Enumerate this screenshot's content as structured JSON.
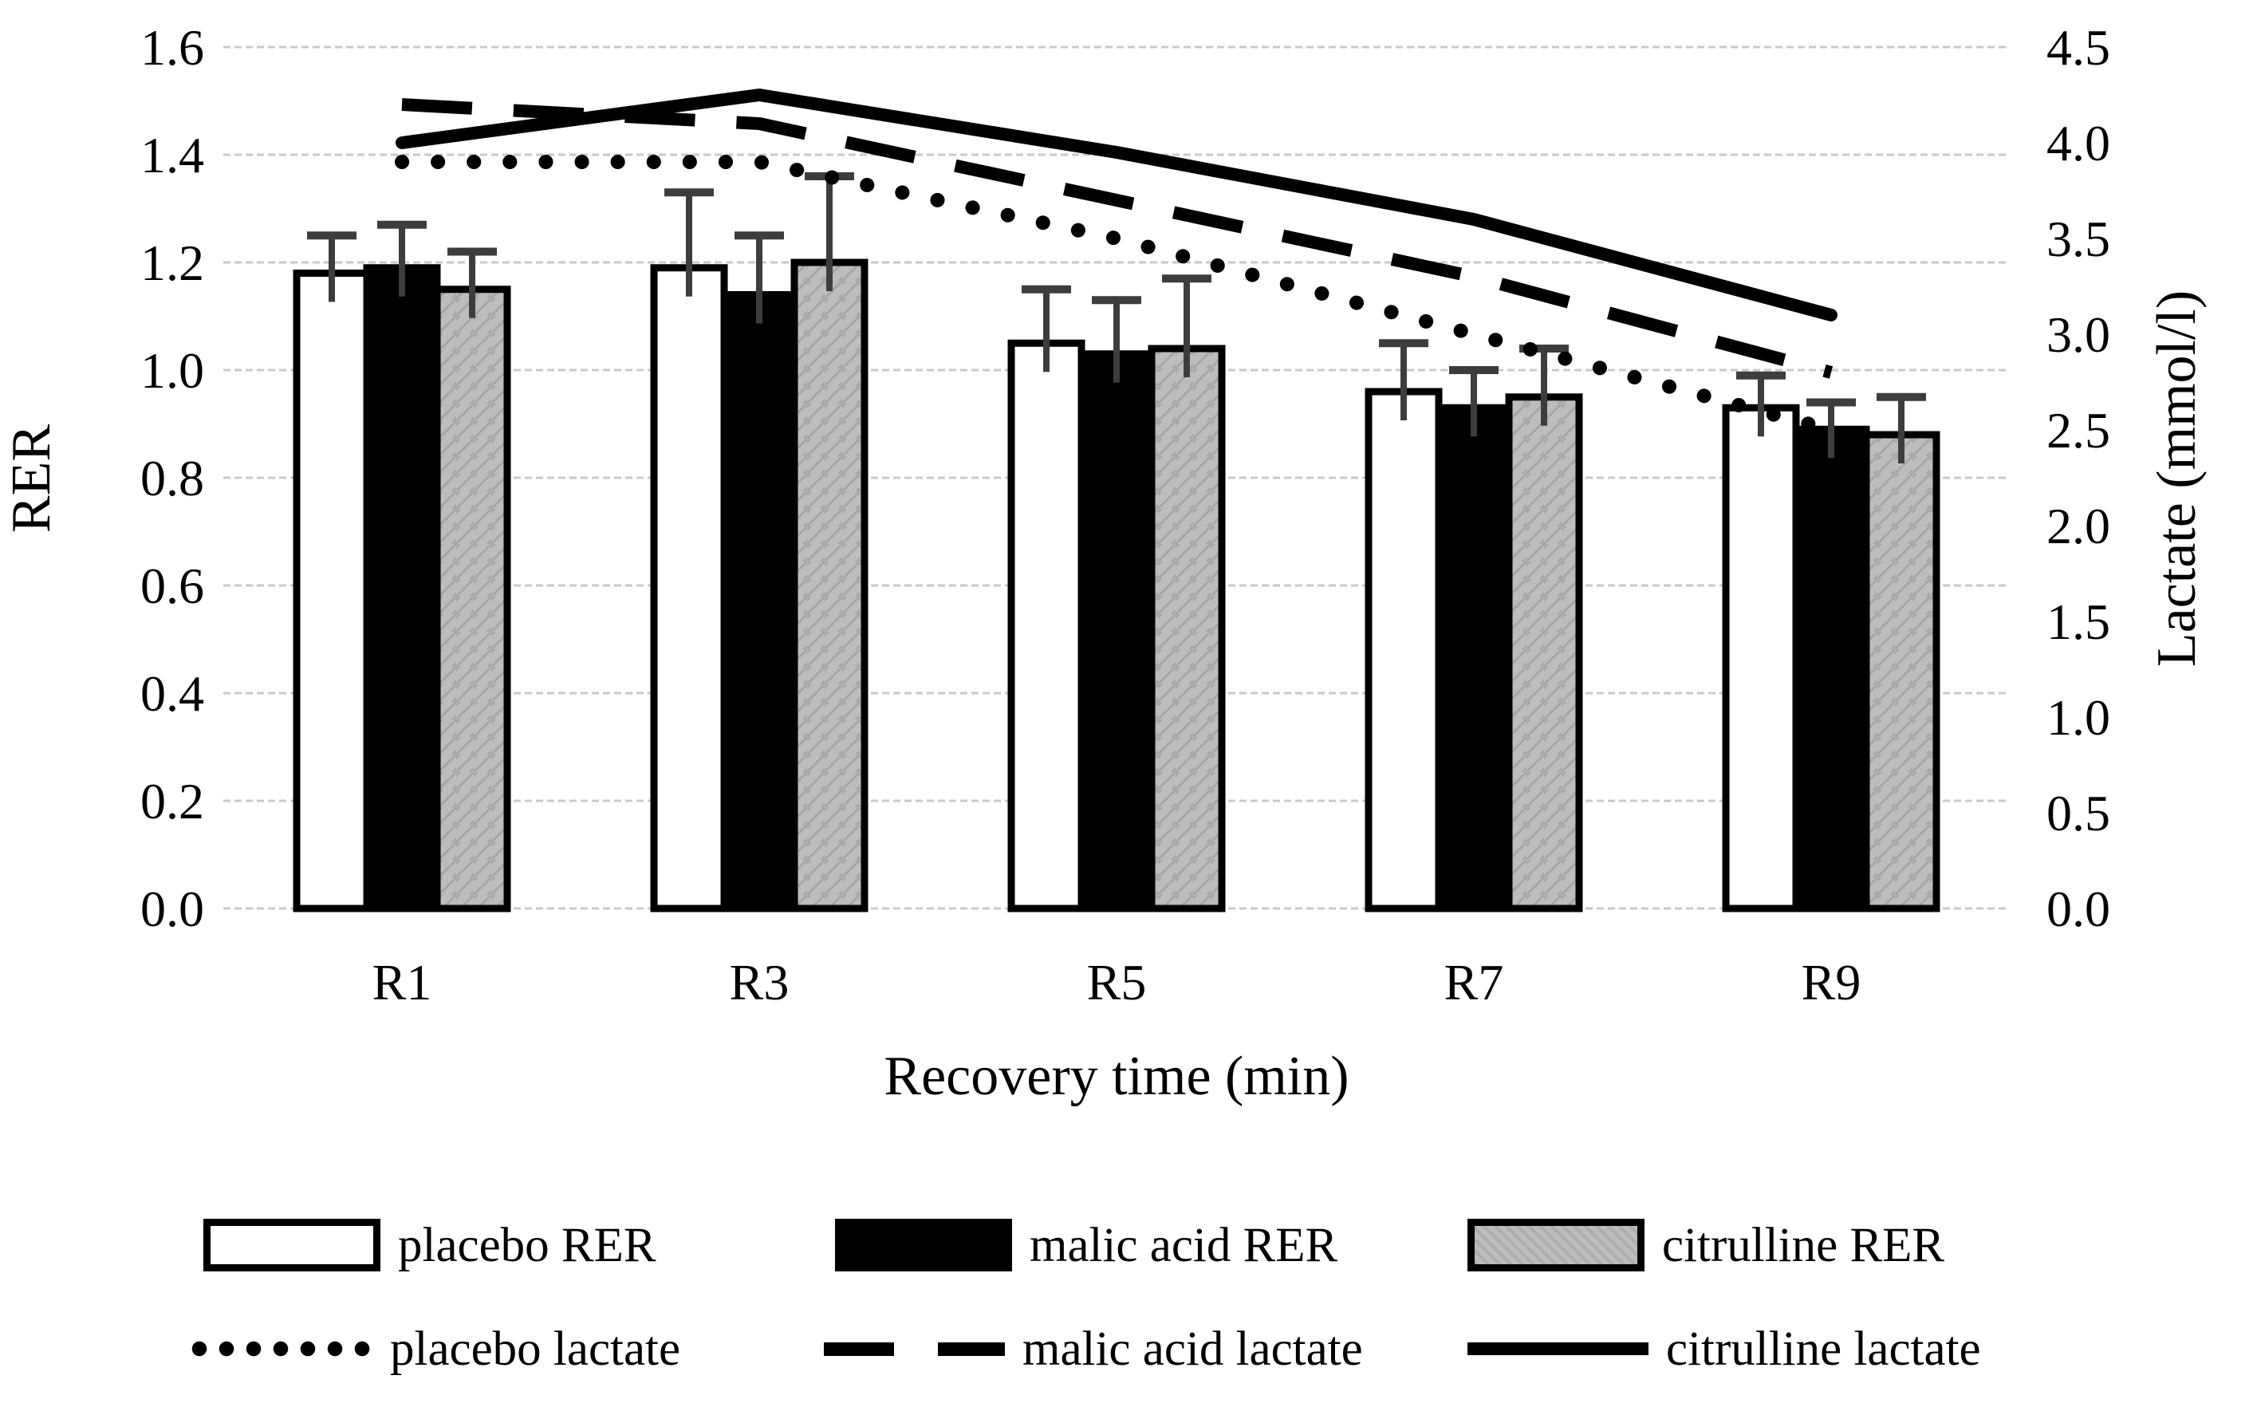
{
  "chart_data": {
    "type": "bar",
    "subtype": "grouped-bar-with-lines-dual-axis",
    "categories": [
      "R1",
      "R3",
      "R5",
      "R7",
      "R9"
    ],
    "bar_series": [
      {
        "name": "placebo RER",
        "fill": "#ffffff",
        "values": [
          1.18,
          1.19,
          1.05,
          0.96,
          0.93
        ],
        "errors_up": [
          0.07,
          0.14,
          0.1,
          0.09,
          0.06
        ]
      },
      {
        "name": "malic acid RER",
        "fill": "#000000",
        "values": [
          1.19,
          1.14,
          1.03,
          0.93,
          0.89
        ],
        "errors_up": [
          0.08,
          0.11,
          0.1,
          0.07,
          0.05
        ]
      },
      {
        "name": "citrulline RER",
        "fill": "#bdbdbd",
        "values": [
          1.15,
          1.2,
          1.04,
          0.95,
          0.88
        ],
        "errors_up": [
          0.07,
          0.16,
          0.13,
          0.09,
          0.07
        ]
      }
    ],
    "line_series": [
      {
        "name": "placebo lactate",
        "style": "dotted",
        "color": "#000000",
        "values": [
          3.9,
          3.9,
          3.5,
          3.0,
          2.5
        ]
      },
      {
        "name": "malic acid lactate",
        "style": "dashed",
        "color": "#000000",
        "values": [
          4.2,
          4.1,
          3.7,
          3.3,
          2.8
        ]
      },
      {
        "name": "citrulline lactate",
        "style": "solid",
        "color": "#000000",
        "values": [
          4.0,
          4.25,
          3.95,
          3.6,
          3.1
        ]
      }
    ],
    "left_axis": {
      "label": "RER",
      "min": 0.0,
      "max": 1.6,
      "step": 0.2,
      "tick_labels": [
        "0.0",
        "0.2",
        "0.4",
        "0.6",
        "0.8",
        "1.0",
        "1.2",
        "1.4",
        "1.6"
      ]
    },
    "right_axis": {
      "label": "Lactate (mmol/l)",
      "min": 0.0,
      "max": 4.5,
      "step": 0.5,
      "tick_labels": [
        "0.0",
        "0.5",
        "1.0",
        "1.5",
        "2.0",
        "2.5",
        "3.0",
        "3.5",
        "4.0",
        "4.5"
      ]
    },
    "x_axis": {
      "label": "Recovery time (min)"
    },
    "grid": true,
    "legend_position": "bottom",
    "colors": {
      "gridline": "#c9c9c9",
      "error_bar": "#3d3d3d",
      "text": "#000000",
      "background": "#ffffff"
    }
  }
}
